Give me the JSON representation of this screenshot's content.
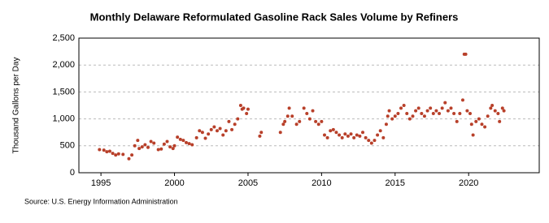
{
  "chart_data": {
    "type": "scatter",
    "title": "Monthly Delaware Reformulated Gasoline Rack Sales Volume by Refiners",
    "y_label": "Thousand Gallons per Day",
    "source": "Source: U.S. Energy Information Administration",
    "color": "#b8402a",
    "grid": true,
    "xlim": [
      1993.5,
      2024.8
    ],
    "xticks": [
      1995,
      2000,
      2005,
      2010,
      2015,
      2020
    ],
    "ylim": [
      0,
      2500
    ],
    "yticks": [
      0,
      {
        "value": 500,
        "label": "500"
      },
      {
        "value": 1000,
        "label": "1,000"
      },
      {
        "value": 1500,
        "label": "1,500"
      },
      {
        "value": 2000,
        "label": "2,000"
      },
      {
        "value": 2500,
        "label": "2,500"
      }
    ],
    "x": [
      1994.9,
      1995.2,
      1995.4,
      1995.6,
      1995.8,
      1996.0,
      1996.2,
      1996.5,
      1996.9,
      1997.1,
      1997.3,
      1997.5,
      1997.6,
      1997.8,
      1998.0,
      1998.2,
      1998.4,
      1998.6,
      1998.9,
      1999.1,
      1999.3,
      1999.5,
      1999.7,
      1999.9,
      2000.0,
      2000.2,
      2000.4,
      2000.6,
      2000.8,
      2001.0,
      2001.2,
      2001.5,
      2001.7,
      2001.9,
      2002.1,
      2002.3,
      2002.5,
      2002.7,
      2002.9,
      2003.1,
      2003.3,
      2003.5,
      2003.7,
      2003.9,
      2004.1,
      2004.3,
      2004.5,
      2004.6,
      2004.7,
      2004.9,
      2005.0,
      2005.8,
      2005.9,
      2007.2,
      2007.4,
      2007.5,
      2007.7,
      2007.8,
      2008.0,
      2008.3,
      2008.5,
      2008.8,
      2009.0,
      2009.2,
      2009.4,
      2009.6,
      2009.8,
      2010.0,
      2010.2,
      2010.4,
      2010.6,
      2010.8,
      2011.0,
      2011.2,
      2011.4,
      2011.6,
      2011.8,
      2012.0,
      2012.2,
      2012.4,
      2012.6,
      2012.8,
      2013.0,
      2013.2,
      2013.4,
      2013.6,
      2013.8,
      2014.0,
      2014.2,
      2014.4,
      2014.5,
      2014.6,
      2014.8,
      2015.0,
      2015.2,
      2015.4,
      2015.6,
      2015.8,
      2016.0,
      2016.2,
      2016.4,
      2016.6,
      2016.8,
      2017.0,
      2017.2,
      2017.4,
      2017.6,
      2017.8,
      2018.0,
      2018.2,
      2018.4,
      2018.6,
      2018.8,
      2019.0,
      2019.2,
      2019.4,
      2019.6,
      2019.7,
      2019.8,
      2019.9,
      2020.1,
      2020.2,
      2020.3,
      2020.5,
      2020.7,
      2020.9,
      2021.1,
      2021.3,
      2021.5,
      2021.6,
      2021.8,
      2022.0,
      2022.1,
      2022.3,
      2022.4
    ],
    "values": [
      430,
      420,
      390,
      400,
      360,
      330,
      350,
      340,
      260,
      330,
      500,
      600,
      450,
      480,
      520,
      470,
      580,
      550,
      430,
      440,
      530,
      580,
      480,
      450,
      500,
      660,
      620,
      600,
      560,
      540,
      520,
      650,
      780,
      750,
      640,
      720,
      800,
      850,
      780,
      820,
      700,
      780,
      950,
      800,
      900,
      1000,
      1250,
      1180,
      1200,
      1100,
      1180,
      680,
      750,
      750,
      900,
      950,
      1050,
      1200,
      1050,
      900,
      950,
      1200,
      1100,
      1000,
      1150,
      950,
      900,
      950,
      700,
      650,
      780,
      800,
      750,
      700,
      650,
      720,
      680,
      720,
      650,
      700,
      680,
      750,
      650,
      600,
      550,
      600,
      700,
      780,
      650,
      900,
      1050,
      1150,
      1000,
      1050,
      1100,
      1200,
      1250,
      1100,
      1000,
      1050,
      1150,
      1200,
      1100,
      1050,
      1150,
      1200,
      1100,
      1150,
      1100,
      1200,
      1300,
      1150,
      1200,
      1100,
      950,
      1100,
      1350,
      2200,
      2200,
      1150,
      1100,
      900,
      700,
      950,
      1000,
      900,
      850,
      1050,
      1200,
      1250,
      1150,
      1100,
      950,
      1200,
      1150
    ]
  }
}
